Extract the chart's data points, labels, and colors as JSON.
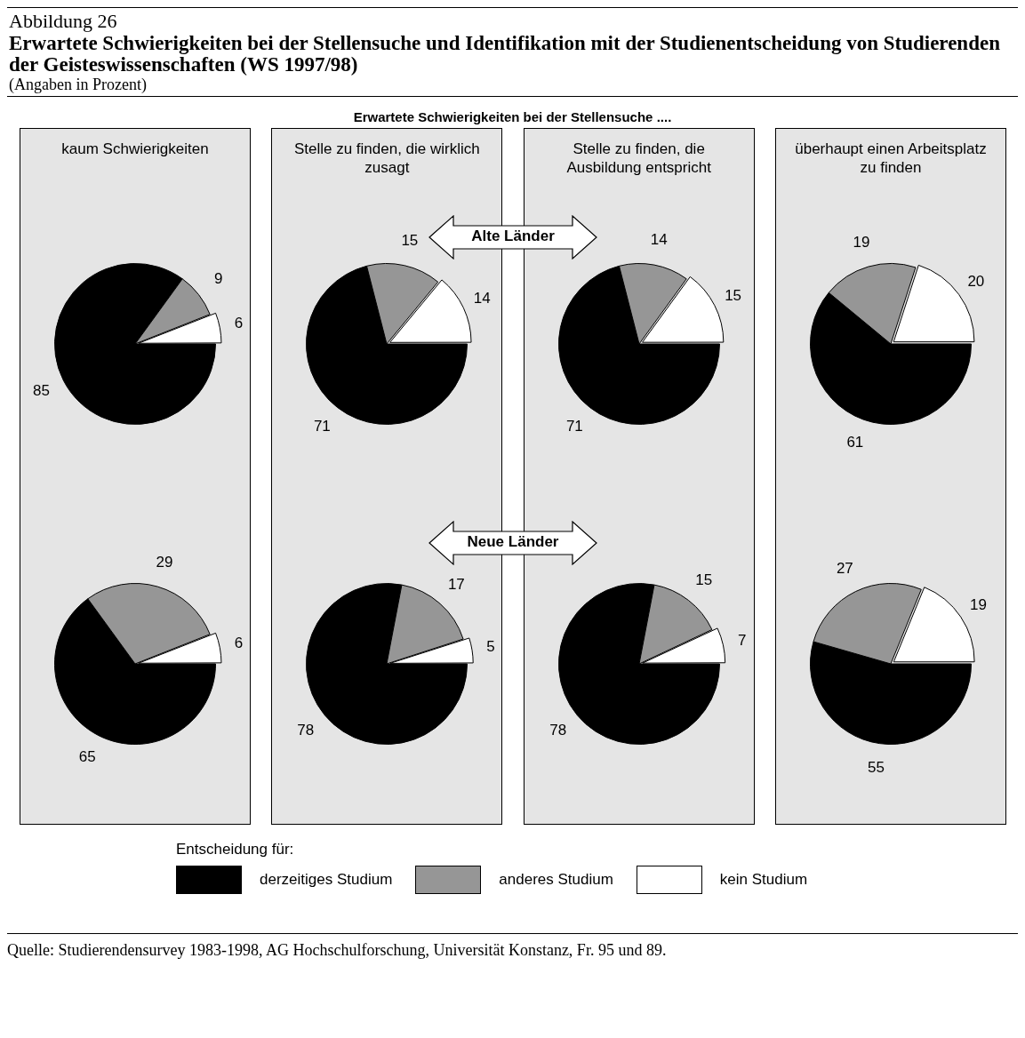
{
  "chart_data": [
    {
      "type": "other",
      "title": "Erwartete Schwierigkeiten bei der Stellensuche und Identifikation mit der Studienentscheidung von Studierenden der Geisteswissenschaften (WS 1997/98)",
      "subtitle": "(Angaben in Prozent)",
      "annotations": [
        "Abbildung 26",
        "Erwartete Schwierigkeiten bei der Stellensuche ....",
        "Quelle:  Studierendensurvey 1983-1998, AG Hochschulforschung, Universität Konstanz, Fr. 95 und 89."
      ]
    },
    {
      "type": "pie",
      "title": "kaum Schwierigkeiten",
      "categories": [
        "derzeitiges Studium",
        "anderes Studium",
        "kein Studium"
      ],
      "values": [
        85,
        9,
        6
      ],
      "colors": [
        "#000000",
        "#969696",
        "#ffffff"
      ],
      "data_labels": true,
      "legend": "bottom",
      "legend_title": "Entscheidung für:"
    },
    {
      "type": "pie",
      "title": "Stelle zu finden, die wirklich zusagt",
      "values": [
        71,
        15,
        14
      ],
      "colors": [
        "#000000",
        "#969696",
        "#ffffff"
      ],
      "data_labels": true,
      "annotations": [
        "Alte Länder"
      ]
    },
    {
      "type": "pie",
      "title": "Stelle zu finden, die Ausbildung entspricht",
      "values": [
        71,
        14,
        15
      ],
      "colors": [
        "#000000",
        "#969696",
        "#ffffff"
      ],
      "data_labels": true
    },
    {
      "type": "pie",
      "title": "überhaupt einen Arbeitsplatz zu finden",
      "values": [
        61,
        19,
        20
      ],
      "colors": [
        "#000000",
        "#969696",
        "#ffffff"
      ],
      "data_labels": true
    },
    {
      "type": "pie",
      "values": [
        65,
        29,
        6
      ],
      "colors": [
        "#000000",
        "#969696",
        "#ffffff"
      ],
      "data_labels": true
    },
    {
      "type": "pie",
      "values": [
        78,
        17,
        5
      ],
      "colors": [
        "#000000",
        "#969696",
        "#ffffff"
      ],
      "data_labels": true,
      "annotations": [
        "Neue Länder"
      ]
    },
    {
      "type": "pie",
      "values": [
        78,
        15,
        7
      ],
      "colors": [
        "#000000",
        "#969696",
        "#ffffff"
      ],
      "data_labels": true
    },
    {
      "type": "pie",
      "values": [
        55,
        27,
        19
      ],
      "colors": [
        "#000000",
        "#969696",
        "#ffffff"
      ],
      "data_labels": true
    }
  ]
}
